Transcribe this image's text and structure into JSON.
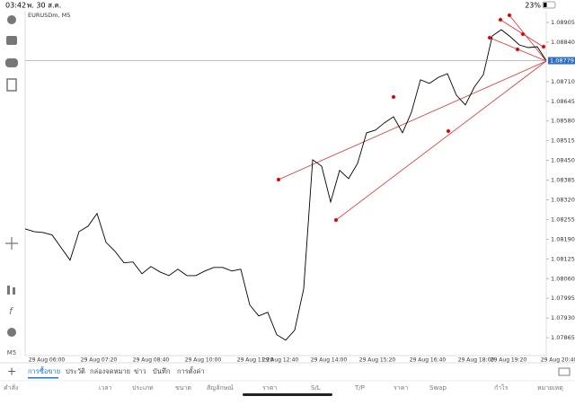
{
  "status_bar": {
    "time": "03:42",
    "date": "พ. 30 ส.ค.",
    "battery": "23%"
  },
  "chart_data": {
    "type": "line",
    "title": "EURUSDm, M5",
    "color": "#000000",
    "values": [
      1.08224,
      1.08215,
      1.08212,
      1.08204,
      1.08162,
      1.08121,
      1.08215,
      1.08233,
      1.08275,
      1.0818,
      1.0815,
      1.08112,
      1.08115,
      1.08076,
      1.081,
      1.08082,
      1.0807,
      1.08091,
      1.0807,
      1.0807,
      1.08085,
      1.08097,
      1.08097,
      1.08085,
      1.08091,
      1.07973,
      1.07937,
      1.07949,
      1.07875,
      1.07857,
      1.0789,
      1.08026,
      1.08452,
      1.08431,
      1.08313,
      1.08417,
      1.0839,
      1.0844,
      1.08541,
      1.0855,
      1.08574,
      1.08594,
      1.08541,
      1.08609,
      1.08716,
      1.08704,
      1.08724,
      1.08736,
      1.08665,
      1.08633,
      1.08692,
      1.08733,
      1.08861,
      1.08881,
      1.08858,
      1.08831,
      1.08822,
      1.08825,
      1.08779
    ],
    "ylim": [
      1.07809,
      1.089435
    ],
    "yticks": [
      1.08905,
      {
        "value": 1.0884,
        "label": "1.08840"
      },
      {
        "value": 1.0871,
        "label": "1.08710"
      },
      1.08645,
      {
        "value": 1.0858,
        "label": "1.08580"
      },
      1.08515,
      {
        "value": 1.0845,
        "label": "1.08450"
      },
      1.08385,
      {
        "value": 1.0832,
        "label": "1.08320"
      },
      1.08255,
      {
        "value": 1.0819,
        "label": "1.08190"
      },
      1.08125,
      {
        "value": 1.0806,
        "label": "1.08060"
      },
      1.07995,
      {
        "value": 1.0793,
        "label": "1.07930"
      },
      1.07865
    ],
    "x_labels": [
      "29 Aug 06:00",
      "29 Aug 07:20",
      "29 Aug 08:40",
      "29 Aug 10:00",
      "29 Aug 11:20",
      "29 Aug 12:40",
      "29 Aug 14:00",
      "29 Aug 15:20",
      "29 Aug 16:40",
      "29 Aug 18:00",
      "29 Aug 19:20",
      "29 Aug 20:40"
    ],
    "grid": false
  },
  "toolbar": {
    "timeframe": "M5"
  },
  "tabs": [
    "การซื้อขาย",
    "ประวัติ",
    "กล่องจดหมาย",
    "ข่าว",
    "บันทึก",
    "การตั้งค่า"
  ],
  "columns": [
    "คำสั่ง",
    "เวลา",
    "ประเภท",
    "ขนาด",
    "สัญลักษณ์",
    "ราคา",
    "S/L",
    "T/P",
    "ราคา",
    "Swap",
    "กำไร",
    "หมายเหตุ"
  ]
}
